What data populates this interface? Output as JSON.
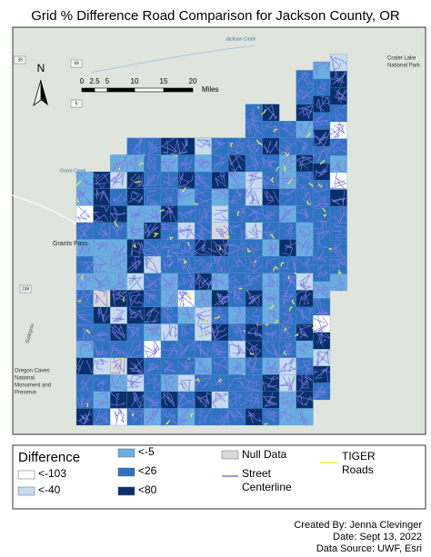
{
  "title": "Grid % Difference Road Comparison for Jackson County, OR",
  "scale_bar": {
    "labels": [
      "0",
      "2.5",
      "5",
      "10",
      "15",
      "20"
    ],
    "unit": "Miles"
  },
  "north_arrow": "N",
  "map_labels": {
    "grants_pass": "Grants Pass",
    "crater_lake": [
      "Crater Lake",
      "National Park"
    ],
    "grave_creek": "Grave Creek",
    "siskiyou": "Siskiyou",
    "oregon_caves": [
      "Oregon Caves",
      "National",
      "Monument and",
      "Preserve"
    ],
    "jackson_creek": "Jackson Creek",
    "shields": [
      "39",
      "99",
      "5",
      "238"
    ]
  },
  "legend": {
    "title": "Difference",
    "classes": [
      {
        "label": "<-103",
        "color": "#ffffff"
      },
      {
        "label": "<-40",
        "color": "#c6dbef"
      },
      {
        "label": "<-5",
        "color": "#6aaee0"
      },
      {
        "label": "<26",
        "color": "#2f72c2"
      },
      {
        "label": "<80",
        "color": "#08306b"
      }
    ],
    "null": {
      "label": "Null Data",
      "color": "#d9d9d9"
    },
    "street": {
      "label": [
        "Street",
        "Centerline"
      ],
      "color": "#7b7be0"
    },
    "tiger": {
      "label": [
        "TIGER",
        "Roads"
      ],
      "color": "#f2f23a"
    }
  },
  "credits": [
    "Created By: Jenna Clevinger",
    "Date: Sept 13, 2022",
    "Data Source: UWF, Esri"
  ]
}
